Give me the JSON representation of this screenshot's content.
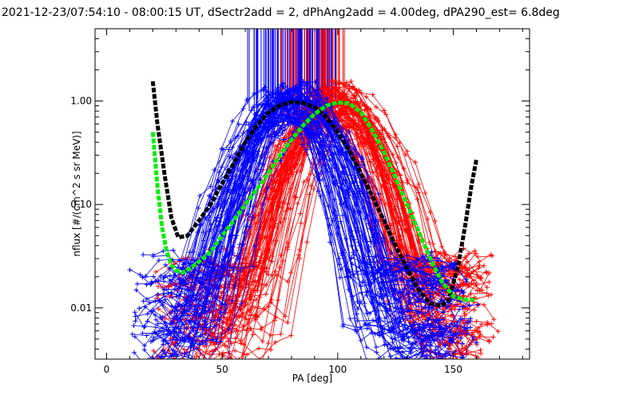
{
  "title": "2021-12-23/07:54:10 - 08:00:15 UT, dSectr2add = 2, dPhAng2add = 4.00deg, dPA290_est=    6.8deg",
  "chart_data": {
    "type": "line",
    "xlabel": "PA [deg]",
    "ylabel": "nflux [#/(cm^2 s sr MeV)]",
    "xlim": [
      -5,
      183
    ],
    "ylim": [
      0.0032,
      5.0
    ],
    "yscale": "log",
    "x_ticks": [
      0,
      50,
      100,
      150
    ],
    "x_tick_labels": [
      "0",
      "50",
      "100",
      "150"
    ],
    "y_ticks": [
      0.01,
      0.1,
      1.0
    ],
    "y_tick_labels": [
      "0.01",
      "0.10",
      "1.00"
    ],
    "grid": false,
    "colors": {
      "blue_series": "#0000ff",
      "red_series": "#ff0000",
      "black_fit": "#000000",
      "green_fit": "#00ee00"
    },
    "series": [
      {
        "color": "black",
        "style": "thick dashed fit",
        "x": [
          20,
          22,
          25,
          28,
          31,
          35,
          40,
          45,
          50,
          55,
          60,
          65,
          70,
          75,
          80,
          85,
          90,
          95,
          100,
          105,
          110,
          115,
          120,
          125,
          130,
          135,
          140,
          145,
          148,
          152,
          155,
          158,
          160
        ],
        "y": [
          1.55,
          0.6,
          0.2,
          0.075,
          0.048,
          0.05,
          0.07,
          0.1,
          0.16,
          0.25,
          0.4,
          0.58,
          0.77,
          0.91,
          0.98,
          0.96,
          0.87,
          0.7,
          0.5,
          0.33,
          0.2,
          0.12,
          0.07,
          0.04,
          0.024,
          0.015,
          0.011,
          0.0105,
          0.012,
          0.025,
          0.06,
          0.16,
          0.27
        ]
      },
      {
        "color": "green",
        "style": "thick dashed fit",
        "x": [
          20,
          22,
          24,
          26,
          28,
          30,
          33,
          36,
          40,
          45,
          50,
          55,
          60,
          65,
          70,
          75,
          80,
          85,
          90,
          95,
          100,
          105,
          110,
          115,
          120,
          125,
          130,
          135,
          140,
          145,
          150,
          155,
          160
        ],
        "y": [
          0.5,
          0.15,
          0.06,
          0.035,
          0.026,
          0.023,
          0.022,
          0.024,
          0.028,
          0.035,
          0.05,
          0.07,
          0.1,
          0.14,
          0.2,
          0.3,
          0.42,
          0.58,
          0.75,
          0.9,
          0.97,
          0.95,
          0.78,
          0.52,
          0.32,
          0.18,
          0.1,
          0.055,
          0.03,
          0.018,
          0.013,
          0.012,
          0.012
        ]
      }
    ],
    "blue_curves": {
      "description": "bundle of blue measured PA distributions, peak near 80 deg",
      "x_start_range": [
        10,
        35
      ],
      "x_end_range": [
        145,
        162
      ],
      "peak_x_range": [
        74,
        86
      ],
      "peak_y_range": [
        0.55,
        1.3
      ],
      "floor_y_range": [
        0.003,
        0.03
      ]
    },
    "red_curves": {
      "description": "bundle of red measured PA distributions, peak near 100 deg",
      "x_start_range": [
        20,
        48
      ],
      "x_end_range": [
        155,
        170
      ],
      "peak_x_range": [
        92,
        108
      ],
      "peak_y_range": [
        0.55,
        1.3
      ],
      "floor_y_range": [
        0.003,
        0.03
      ]
    },
    "vertical_spikes": {
      "blue_x_range": [
        60,
        100
      ],
      "red_x_range": [
        75,
        103
      ]
    }
  }
}
